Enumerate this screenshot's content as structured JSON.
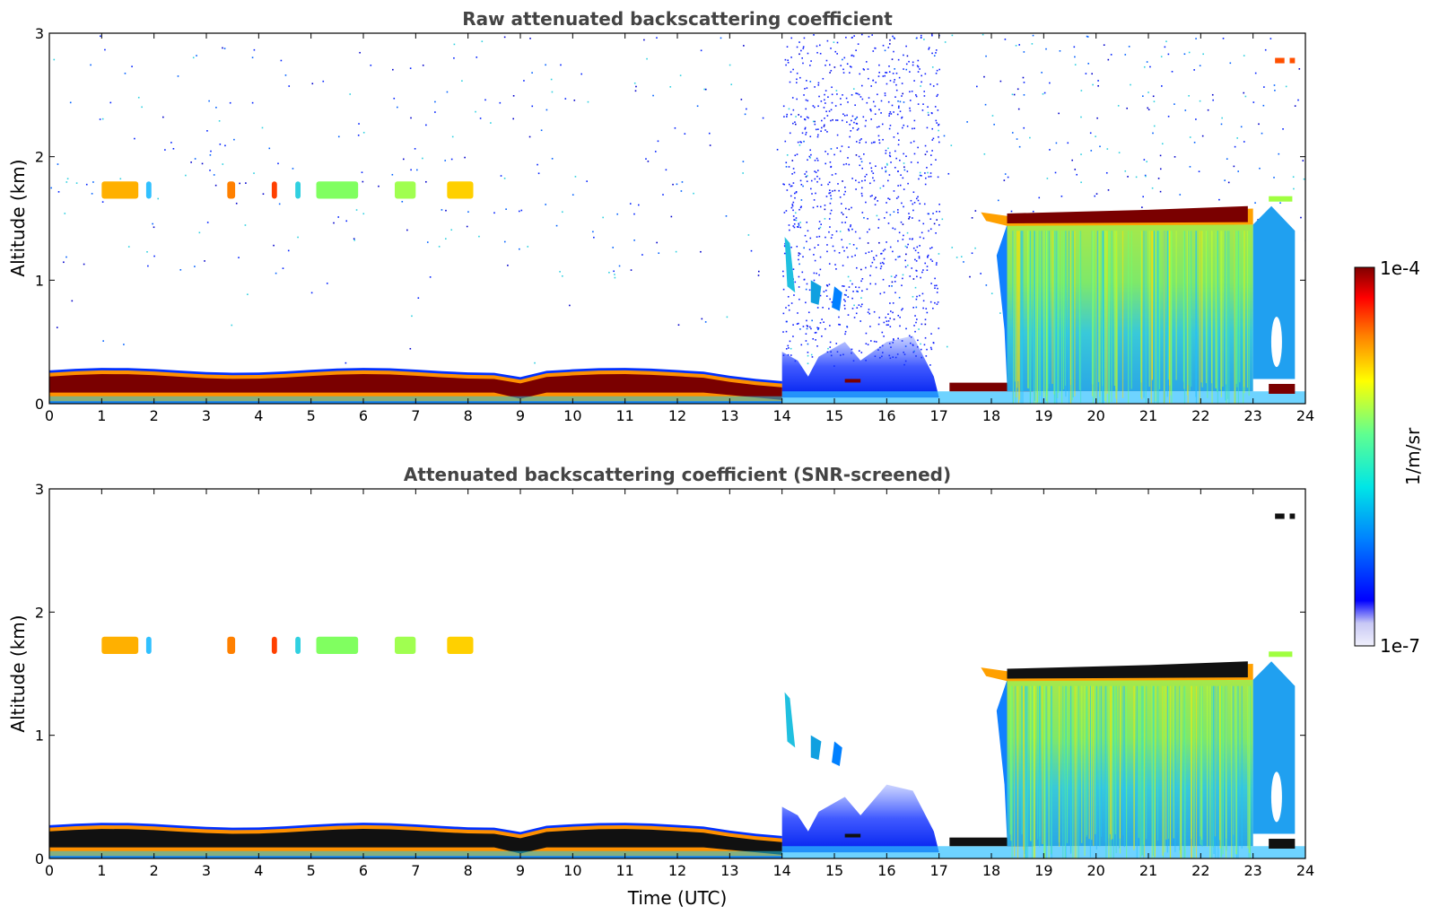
{
  "chart_data": [
    {
      "type": "heatmap",
      "title": "Raw attenuated backscattering coefficient",
      "xlabel": "",
      "ylabel": "Altitude (km)",
      "xlim": [
        0,
        24
      ],
      "ylim": [
        0,
        3
      ],
      "x_ticks": [
        "0",
        "1",
        "2",
        "3",
        "4",
        "5",
        "6",
        "7",
        "8",
        "9",
        "10",
        "11",
        "12",
        "13",
        "14",
        "15",
        "16",
        "17",
        "18",
        "19",
        "20",
        "21",
        "22",
        "23",
        "24"
      ],
      "y_ticks": [
        "0",
        "1",
        "2",
        "3"
      ],
      "grid": false,
      "features": [
        {
          "kind": "boundary_layer",
          "t_start": 0,
          "t_end": 14,
          "alt_bottom": 0.0,
          "alt_top": 0.28,
          "peak": "1e-4"
        },
        {
          "kind": "elevated_layer",
          "t_start": 1.0,
          "t_end": 8.1,
          "alt": 1.73,
          "patchy": true
        },
        {
          "kind": "noise_band",
          "t_start": 14.0,
          "t_end": 17.0,
          "alt_top": 3.0
        },
        {
          "kind": "fog_region",
          "t_start": 14.0,
          "t_end": 17.0,
          "alt_top": 0.5
        },
        {
          "kind": "cloud_layer",
          "t_start": 17.8,
          "t_end": 23.0,
          "alt": 1.5,
          "peak": "1e-4"
        },
        {
          "kind": "precipitation",
          "t_start": 18.3,
          "t_end": 23.0,
          "alt_top": 1.45
        },
        {
          "kind": "aerosol_layer",
          "t_start": 23.4,
          "t_end": 23.8,
          "alt": 2.78
        }
      ]
    },
    {
      "type": "heatmap",
      "title": "Attenuated backscattering coefficient (SNR-screened)",
      "xlabel": "Time (UTC)",
      "ylabel": "Altitude (km)",
      "xlim": [
        0,
        24
      ],
      "ylim": [
        0,
        3
      ],
      "x_ticks": [
        "0",
        "1",
        "2",
        "3",
        "4",
        "5",
        "6",
        "7",
        "8",
        "9",
        "10",
        "11",
        "12",
        "13",
        "14",
        "15",
        "16",
        "17",
        "18",
        "19",
        "20",
        "21",
        "22",
        "23",
        "24"
      ],
      "y_ticks": [
        "0",
        "1",
        "2",
        "3"
      ],
      "grid": false,
      "features": [
        {
          "kind": "boundary_layer",
          "t_start": 0,
          "t_end": 14,
          "alt_bottom": 0.0,
          "alt_top": 0.28,
          "saturated": true
        },
        {
          "kind": "elevated_layer",
          "t_start": 1.0,
          "t_end": 8.1,
          "alt": 1.73,
          "patchy": true
        },
        {
          "kind": "fog_region",
          "t_start": 14.0,
          "t_end": 17.0,
          "alt_top": 0.6
        },
        {
          "kind": "cloud_layer",
          "t_start": 17.8,
          "t_end": 23.0,
          "alt": 1.5,
          "saturated": true
        },
        {
          "kind": "precipitation",
          "t_start": 18.3,
          "t_end": 23.0,
          "alt_top": 1.45
        },
        {
          "kind": "aerosol_layer",
          "t_start": 23.4,
          "t_end": 23.8,
          "alt": 2.78
        }
      ]
    }
  ],
  "colorbar": {
    "label": "1/m/sr",
    "min_label": "1e-7",
    "max_label": "1e-4",
    "scale": "log",
    "colormap": [
      "#f0f0fc",
      "#c8c8f5",
      "#0000ff",
      "#0080ff",
      "#00e6e6",
      "#60ff90",
      "#ffff00",
      "#ff8000",
      "#ff0000",
      "#800000"
    ]
  }
}
